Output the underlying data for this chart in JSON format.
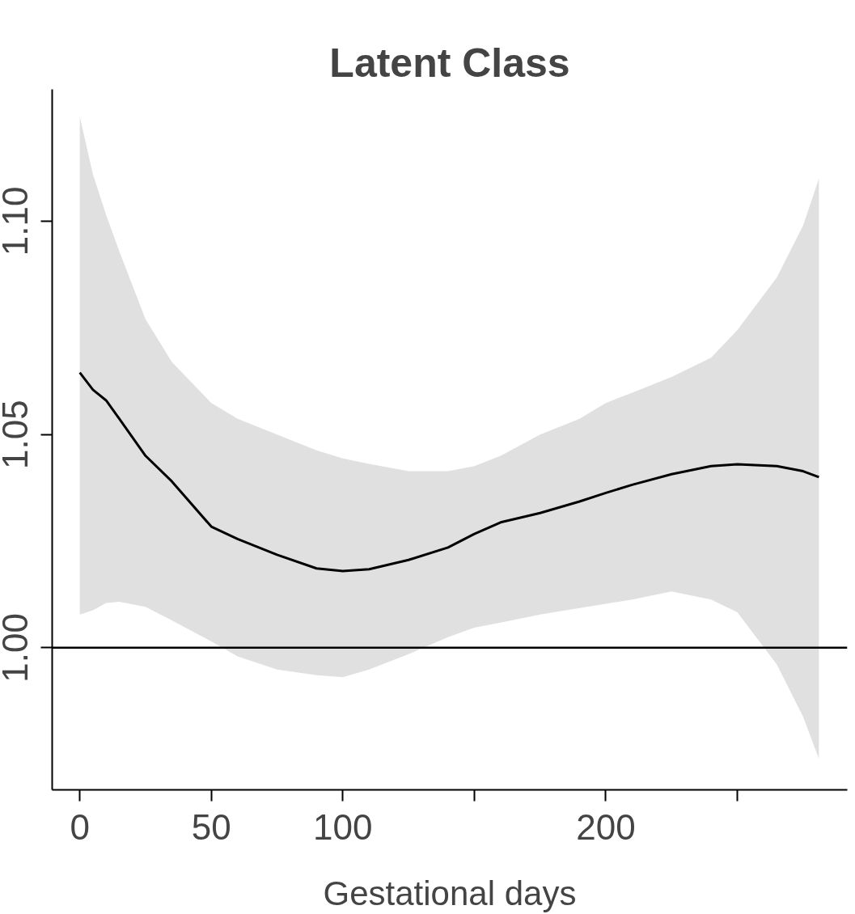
{
  "chart_data": {
    "type": "line",
    "title": "Latent Class",
    "xlabel": "Gestational days",
    "x": [
      0,
      5,
      10,
      15,
      25,
      35,
      50,
      60,
      75,
      90,
      100,
      110,
      125,
      140,
      150,
      160,
      175,
      190,
      200,
      210,
      225,
      240,
      250,
      265,
      275,
      281
    ],
    "series": [
      {
        "color": "#000000",
        "values": [
          1.0645,
          1.0605,
          1.058,
          1.0537,
          1.045,
          1.039,
          1.0284,
          1.0255,
          1.0218,
          1.0186,
          1.018,
          1.0184,
          1.0206,
          1.0235,
          1.0267,
          1.0294,
          1.0316,
          1.0343,
          1.0363,
          1.0382,
          1.0407,
          1.0426,
          1.043,
          1.0426,
          1.0414,
          1.04
        ],
        "upper": [
          1.1245,
          1.111,
          1.1015,
          1.093,
          1.077,
          1.067,
          1.0574,
          1.0537,
          1.05,
          1.0463,
          1.0444,
          1.0431,
          1.0414,
          1.0414,
          1.0426,
          1.045,
          1.05,
          1.0537,
          1.0574,
          1.0598,
          1.0635,
          1.068,
          1.0745,
          1.0868,
          1.099,
          1.11
        ],
        "lower": [
          1.0078,
          1.0088,
          1.0105,
          1.0108,
          1.0096,
          1.0064,
          1.0015,
          0.998,
          0.9949,
          0.9936,
          0.9931,
          0.9949,
          0.9985,
          1.0025,
          1.0047,
          1.0059,
          1.0078,
          1.0093,
          1.0103,
          1.0113,
          1.0132,
          1.0113,
          1.0083,
          0.9961,
          0.9838,
          0.974
        ]
      }
    ],
    "xlim": [
      -10.5,
      291.8
    ],
    "ylim": [
      0.9667,
      1.1309
    ],
    "xticks": [
      0,
      50,
      100,
      {
        "value": 150,
        "label": null
      },
      200,
      {
        "value": 250,
        "label": null
      }
    ],
    "yticks": [
      {
        "value": 1.0,
        "label": "1.00"
      },
      {
        "value": 1.05,
        "label": "1.05"
      },
      {
        "value": 1.1,
        "label": "1.10"
      }
    ],
    "ref_lines": [
      {
        "axis": "y",
        "value": 1.0,
        "color": "#000000"
      }
    ],
    "grid": false,
    "marker": "none",
    "line_style": "solid"
  }
}
